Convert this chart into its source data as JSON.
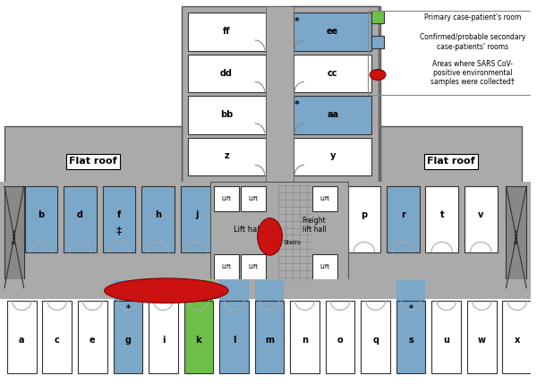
{
  "fig_width": 6.0,
  "fig_height": 4.29,
  "dpi": 100,
  "bg_color": "#ffffff",
  "gray_wall": "#aaaaaa",
  "dark_gray": "#888888",
  "blue_room": "#7ba7c9",
  "green_room": "#6dbf4a",
  "white_room": "#ffffff",
  "red_ellipse": "#cc1111",
  "room_border": "#333333",
  "legend_green": "#6dbf4a",
  "legend_blue": "#7ba7c9",
  "legend_red": "#cc1111",
  "north_corridor_rooms": {
    "left_col": [
      "ff",
      "dd",
      "bb",
      "z"
    ],
    "left_blue": [
      false,
      false,
      false,
      false
    ],
    "right_col": [
      "ee",
      "cc",
      "aa",
      "y"
    ],
    "right_blue": [
      true,
      false,
      true,
      false
    ],
    "right_star": [
      true,
      false,
      true,
      false
    ]
  },
  "west_rooms": [
    "b",
    "d",
    "f",
    "h",
    "j"
  ],
  "west_blue": [
    true,
    true,
    true,
    true,
    true
  ],
  "west_double_dagger": "f",
  "east_rooms": [
    "p",
    "r",
    "t",
    "v"
  ],
  "east_blue": [
    false,
    true,
    false,
    false
  ],
  "south_rooms": [
    "a",
    "c",
    "e",
    "g",
    "i",
    "k",
    "l",
    "m",
    "n",
    "o",
    "q",
    "s",
    "u",
    "w",
    "x"
  ],
  "south_blue": [
    false,
    false,
    false,
    true,
    false,
    true,
    true,
    true,
    false,
    false,
    false,
    true,
    false,
    false,
    false
  ],
  "south_green": [
    false,
    false,
    false,
    false,
    false,
    true,
    false,
    false,
    false,
    false,
    false,
    false,
    false,
    false,
    false
  ],
  "south_star": [
    false,
    false,
    false,
    true,
    false,
    false,
    false,
    false,
    false,
    false,
    false,
    true,
    false,
    false,
    false
  ],
  "flat_roof_left_label": "Flat roof",
  "flat_roof_right_label": "Flat roof",
  "lift_hall_label": "Lift hall",
  "freight_lift_hall_label": "Freight\nlift hall",
  "stairs_label": "Stairs",
  "lift_label": "Lift"
}
